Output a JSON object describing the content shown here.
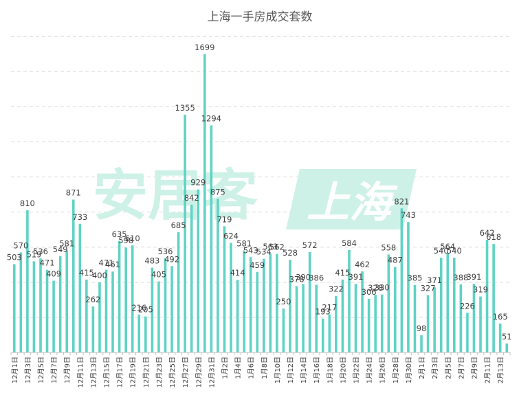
{
  "chart_data": {
    "type": "bar",
    "title": "上海一手房成交套数",
    "xlabel": "",
    "ylabel": "",
    "ylim": [
      0,
      1800
    ],
    "grid": true,
    "legend": "none",
    "watermark": {
      "text": "安居客",
      "badge": "上海"
    },
    "colors": {
      "bar": "#5fd3c4",
      "grid": "#d9d9d9",
      "axis": "#bfbfbf",
      "text": "#404040",
      "title": "#595959",
      "watermark": "#cdf1e6"
    },
    "categories": [
      "12月1日",
      "12月2日",
      "12月3日",
      "12月4日",
      "12月5日",
      "12月6日",
      "12月7日",
      "12月8日",
      "12月9日",
      "12月10日",
      "12月11日",
      "12月12日",
      "12月13日",
      "12月14日",
      "12月15日",
      "12月16日",
      "12月17日",
      "12月18日",
      "12月19日",
      "12月20日",
      "12月21日",
      "12月22日",
      "12月23日",
      "12月24日",
      "12月25日",
      "12月26日",
      "12月27日",
      "12月28日",
      "12月29日",
      "12月30日",
      "12月31日",
      "1月1日",
      "1月2日",
      "1月3日",
      "1月4日",
      "1月5日",
      "1月6日",
      "1月7日",
      "1月8日",
      "1月9日",
      "1月10日",
      "1月11日",
      "1月12日",
      "1月13日",
      "1月14日",
      "1月15日",
      "1月16日",
      "1月17日",
      "1月18日",
      "1月19日",
      "1月20日",
      "1月21日",
      "1月22日",
      "1月23日",
      "1月24日",
      "1月25日",
      "1月26日",
      "1月27日",
      "1月28日",
      "1月29日",
      "1月30日",
      "1月31日",
      "2月1日",
      "2月2日",
      "2月3日",
      "2月4日",
      "2月5日",
      "2月6日",
      "2月7日",
      "2月8日",
      "2月9日",
      "2月10日",
      "2月11日",
      "2月12日",
      "2月13日",
      "2月14日"
    ],
    "tick_labels": [
      "12月1日",
      "12月3日",
      "12月5日",
      "12月7日",
      "12月9日",
      "12月11日",
      "12月13日",
      "12月15日",
      "12月17日",
      "12月19日",
      "12月21日",
      "12月23日",
      "12月25日",
      "12月27日",
      "12月29日",
      "12月31日",
      "1月2日",
      "1月4日",
      "1月6日",
      "1月8日",
      "1月10日",
      "1月12日",
      "1月14日",
      "1月16日",
      "1月18日",
      "1月20日",
      "1月22日",
      "1月24日",
      "1月26日",
      "1月28日",
      "1月30日",
      "2月1日",
      "2月3日",
      "2月5日",
      "2月7日",
      "2月9日",
      "2月11日",
      "2月13日"
    ],
    "values": [
      503,
      570,
      810,
      519,
      536,
      471,
      409,
      549,
      581,
      871,
      733,
      415,
      262,
      400,
      471,
      461,
      635,
      598,
      610,
      216,
      205,
      483,
      405,
      536,
      492,
      685,
      1355,
      842,
      929,
      1699,
      1294,
      875,
      719,
      624,
      414,
      581,
      543,
      459,
      534,
      563,
      562,
      250,
      528,
      378,
      390,
      572,
      386,
      193,
      217,
      322,
      415,
      584,
      391,
      462,
      306,
      328,
      330,
      558,
      487,
      821,
      743,
      385,
      98,
      327,
      371,
      540,
      564,
      540,
      388,
      226,
      391,
      319,
      642,
      618,
      165,
      51
    ]
  }
}
